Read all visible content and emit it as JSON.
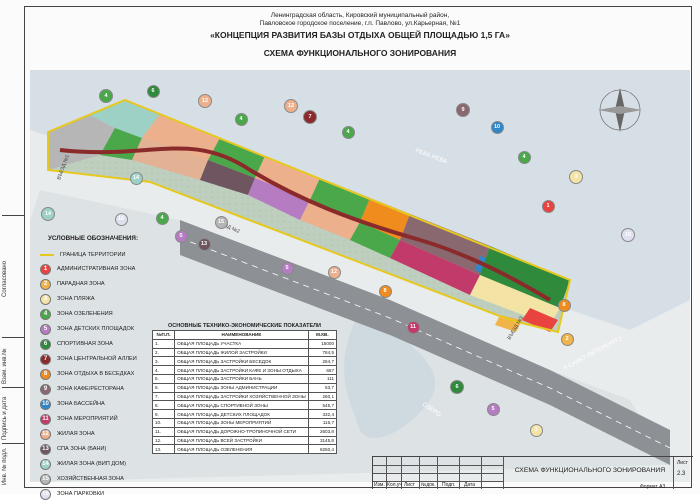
{
  "header": {
    "line1": "Ленинградская область, Кировский муниципальный район,",
    "line2": "Павловское городское поселение, г.п. Павлово, ул.Карьерная, №1",
    "concept": "«КОНЦЕПЦИЯ РАЗВИТИЯ БАЗЫ ОТДЫХА ОБЩЕЙ ПЛОЩАДЬЮ 1,5 ГА»",
    "scheme": "СХЕМА ФУНКЦИОНАЛЬНОГО ЗОНИРОВАНИЯ"
  },
  "map_labels": {
    "river": "РЕКА НЕВА",
    "lake": "ОЗЕРО",
    "road": "К САНКТ-ПЕТЕРБУРГУ",
    "entry1": "ВЪЕЗД №1",
    "entry2": "ВЪЕЗД №2",
    "entry3": "ВЪЕЗД №3"
  },
  "legend": {
    "title": "УСЛОВНЫЕ ОБОЗНАЧЕНИЯ:",
    "boundary": "ГРАНИЦА ТЕРРИТОРИИ",
    "items": [
      {
        "num": "1",
        "label": "АДМИНИСТРАТИВНАЯ ЗОНА",
        "color": "#e8433f"
      },
      {
        "num": "2",
        "label": "ПАРАДНАЯ ЗОНА",
        "color": "#f0b44a"
      },
      {
        "num": "3",
        "label": "ЗОНА ПЛЯЖА",
        "color": "#f3e4a6"
      },
      {
        "num": "4",
        "label": "ЗОНА ОЗЕЛЕНЕНИЯ",
        "color": "#4aa84a"
      },
      {
        "num": "5",
        "label": "ЗОНА ДЕТСКИХ ПЛОЩАДОК",
        "color": "#b57cc2"
      },
      {
        "num": "6",
        "label": "СПОРТИВНАЯ ЗОНА",
        "color": "#2f8a3c"
      },
      {
        "num": "7",
        "label": "ЗОНА ЦЕНТРАЛЬНОЙ АЛЛЕИ",
        "color": "#8b2a2a"
      },
      {
        "num": "8",
        "label": "ЗОНА ОТДЫХА В БЕСЕДКАХ",
        "color": "#f08c1e"
      },
      {
        "num": "9",
        "label": "ЗОНА КАФЕ/РЕСТОРАНА",
        "color": "#8a6870"
      },
      {
        "num": "10",
        "label": "ЗОНА БАССЕЙНА",
        "color": "#2f86c9"
      },
      {
        "num": "11",
        "label": "ЗОНА МЕРОПРИЯТИЙ",
        "color": "#c23a6a"
      },
      {
        "num": "12",
        "label": "ЖИЛАЯ ЗОНА",
        "color": "#ecb08c"
      },
      {
        "num": "13",
        "label": "СПА ЗОНА (БАНИ)",
        "color": "#6e5560"
      },
      {
        "num": "14",
        "label": "ЖИЛАЯ ЗОНА (ВИП ДОМ)",
        "color": "#9ed1c5"
      },
      {
        "num": "15",
        "label": "ХОЗЯЙСТВЕННАЯ ЗОНА",
        "color": "#b6b6b6"
      },
      {
        "num": "16",
        "label": "ЗОНА ПАРКОВКИ",
        "color": "#dfe0ef"
      }
    ]
  },
  "tep": {
    "title": "ОСНОВНЫЕ ТЕХНИКО-ЭКОНОМИЧЕСКИЕ ПОКАЗАТЕЛИ",
    "col_num": "№П.П.",
    "col_name": "НАИМЕНОВАНИЕ",
    "col_val": "М.КВ.",
    "rows": [
      {
        "n": "1.",
        "name": "ОБЩАЯ ПЛОЩАДЬ УЧАСТКА",
        "v": "15000"
      },
      {
        "n": "2.",
        "name": "ОБЩАЯ ПЛОЩАДЬ ЖИЛОЙ ЗАСТРОЙКИ",
        "v": "784,5"
      },
      {
        "n": "3.",
        "name": "ОБЩАЯ ПЛОЩАДЬ ЗАСТРОЙКИ БЕСЕДОК",
        "v": "264,7"
      },
      {
        "n": "4.",
        "name": "ОБЩАЯ ПЛОЩАДЬ ЗАСТРОЙКИ КАФЕ И ЗОНЫ ОТДЫХА",
        "v": "667"
      },
      {
        "n": "5.",
        "name": "ОБЩАЯ ПЛОЩАДЬ ЗАСТРОЙКИ БАНЬ",
        "v": "111"
      },
      {
        "n": "6.",
        "name": "ОБЩАЯ ПЛОЩАДЬ ЗОНЫ АДМИНИСТРАЦИИ",
        "v": "63,7"
      },
      {
        "n": "7.",
        "name": "ОБЩАЯ ПЛОЩАДЬ ЗАСТРОЙКИ ХОЗЯЙСТВЕННОЙ ЗОНЫ",
        "v": "260,1"
      },
      {
        "n": "8.",
        "name": "ОБЩАЯ ПЛОЩАДЬ СПОРТИВНОЙ ЗОНЫ",
        "v": "545,7"
      },
      {
        "n": "9.",
        "name": "ОБЩАЯ ПЛОЩАДЬ ДЕТСКИХ ПЛОЩАДОК",
        "v": "332,4"
      },
      {
        "n": "10.",
        "name": "ОБЩАЯ ПЛОЩАДЬ ЗОНЫ МЕРОПРИЯТИЙ",
        "v": "116,7"
      },
      {
        "n": "11.",
        "name": "ОБЩАЯ ПЛОЩАДЬ ДОРОЖНО-ТРОПИНОЧНОЙ СЕТИ",
        "v": "2603,8"
      },
      {
        "n": "12.",
        "name": "ОБЩАЯ ПЛОЩАДЬ ВСЕЙ ЗАСТРОЙКИ",
        "v": "3145,8"
      },
      {
        "n": "13.",
        "name": "ОБЩАЯ ПЛОЩАДЬ ОЗЕЛЕНЕНИЯ",
        "v": "8250,4"
      }
    ]
  },
  "stamp": {
    "izm": "Изм.",
    "kol": "Кол.уч",
    "list": "Лист",
    "ndok": "№док.",
    "podp": "Подп.",
    "data": "Дата",
    "title": "СХЕМА ФУНКЦИОНАЛЬНОГО ЗОНИРОВАНИЯ",
    "sheet_label": "Лист",
    "sheet_no": "2.3",
    "format": "Формат А3"
  },
  "left_strip": {
    "agreed": "Согласовано",
    "inv_zam": "Взам. инв.№",
    "podp_data": "Подпись и дата",
    "inv_podl": "Инв. № подл."
  },
  "markers": [
    {
      "num": "4",
      "color": "#4aa84a"
    },
    {
      "num": "6",
      "color": "#2f8a3c"
    },
    {
      "num": "12",
      "color": "#ecb08c"
    },
    {
      "num": "4",
      "color": "#4aa84a"
    },
    {
      "num": "12",
      "color": "#ecb08c"
    },
    {
      "num": "7",
      "color": "#8b2a2a"
    },
    {
      "num": "4",
      "color": "#4aa84a"
    },
    {
      "num": "9",
      "color": "#8a6870"
    },
    {
      "num": "10",
      "color": "#2f86c9"
    },
    {
      "num": "4",
      "color": "#4aa84a"
    },
    {
      "num": "3",
      "color": "#f3e4a6"
    },
    {
      "num": "1",
      "color": "#e8433f"
    },
    {
      "num": "14",
      "color": "#9ed1c5"
    },
    {
      "num": "16",
      "color": "#dfe0ef"
    },
    {
      "num": "14",
      "color": "#9ed1c5"
    },
    {
      "num": "4",
      "color": "#4aa84a"
    },
    {
      "num": "5",
      "color": "#b57cc2"
    },
    {
      "num": "13",
      "color": "#6e5560"
    },
    {
      "num": "15",
      "color": "#b6b6b6"
    },
    {
      "num": "5",
      "color": "#b57cc2"
    },
    {
      "num": "12",
      "color": "#ecb08c"
    },
    {
      "num": "8",
      "color": "#f08c1e"
    },
    {
      "num": "11",
      "color": "#c23a6a"
    },
    {
      "num": "6",
      "color": "#2f8a3c"
    },
    {
      "num": "5",
      "color": "#b57cc2"
    },
    {
      "num": "3",
      "color": "#f3e4a6"
    },
    {
      "num": "2",
      "color": "#f0b44a"
    },
    {
      "num": "8",
      "color": "#f08c1e"
    },
    {
      "num": "16",
      "color": "#dfe0ef"
    }
  ]
}
